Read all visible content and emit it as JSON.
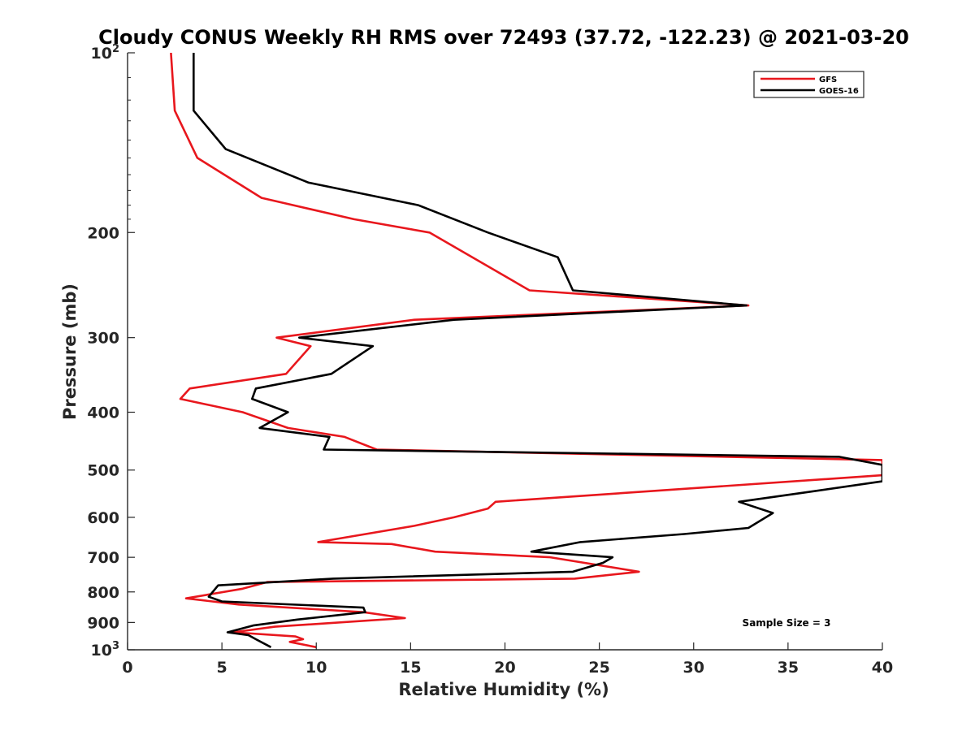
{
  "chart_data": {
    "type": "line",
    "title": "Cloudy CONUS Weekly RH RMS over 72493 (37.72, -122.23) @ 2021-03-20",
    "xlabel": "Relative Humidity (%)",
    "ylabel": "Pressure (mb)",
    "xlim": [
      0,
      40
    ],
    "ylim": [
      100,
      1000
    ],
    "y_scale": "log",
    "y_reversed": true,
    "x_ticks": [
      "0",
      "5",
      "10",
      "15",
      "20",
      "25",
      "30",
      "35",
      "40"
    ],
    "y_ticks": [
      {
        "value": 100,
        "base": "10",
        "exp": "2"
      },
      {
        "value": 200,
        "label": "200"
      },
      {
        "value": 300,
        "label": "300"
      },
      {
        "value": 400,
        "label": "400"
      },
      {
        "value": 500,
        "label": "500"
      },
      {
        "value": 600,
        "label": "600"
      },
      {
        "value": 700,
        "label": "700"
      },
      {
        "value": 800,
        "label": "800"
      },
      {
        "value": 900,
        "label": "900"
      },
      {
        "value": 1000,
        "base": "10",
        "exp": "3"
      }
    ],
    "grid": false,
    "legend_position": "top-right",
    "annotation": "Sample Size = 3",
    "series": [
      {
        "name": "GFS",
        "color": "#e8171d",
        "points": [
          [
            2.3,
            100
          ],
          [
            2.5,
            125
          ],
          [
            3.7,
            150
          ],
          [
            7.1,
            175
          ],
          [
            12.0,
            190
          ],
          [
            16.0,
            200
          ],
          [
            21.3,
            250
          ],
          [
            32.9,
            265
          ],
          [
            15.2,
            280
          ],
          [
            7.9,
            300
          ],
          [
            9.7,
            310
          ],
          [
            8.4,
            345
          ],
          [
            3.3,
            365
          ],
          [
            2.8,
            380
          ],
          [
            6.1,
            400
          ],
          [
            8.5,
            425
          ],
          [
            11.5,
            440
          ],
          [
            13.2,
            462
          ],
          [
            40.0,
            481
          ],
          [
            40.0,
            510
          ],
          [
            19.5,
            565
          ],
          [
            19.1,
            580
          ],
          [
            17.3,
            600
          ],
          [
            15.2,
            620
          ],
          [
            10.1,
            660
          ],
          [
            14.0,
            665
          ],
          [
            16.3,
            685
          ],
          [
            22.4,
            700
          ],
          [
            27.1,
            740
          ],
          [
            23.7,
            760
          ],
          [
            7.4,
            770
          ],
          [
            6.1,
            790
          ],
          [
            3.1,
            820
          ],
          [
            5.9,
            840
          ],
          [
            12.5,
            865
          ],
          [
            14.7,
            885
          ],
          [
            7.8,
            915
          ],
          [
            5.6,
            935
          ],
          [
            8.9,
            950
          ],
          [
            9.3,
            960
          ],
          [
            8.6,
            970
          ],
          [
            10.0,
            990
          ]
        ]
      },
      {
        "name": "GOES-16",
        "color": "#000000",
        "points": [
          [
            3.5,
            100
          ],
          [
            3.5,
            125
          ],
          [
            5.2,
            145
          ],
          [
            9.6,
            165
          ],
          [
            15.4,
            180
          ],
          [
            19.1,
            200
          ],
          [
            22.8,
            220
          ],
          [
            23.6,
            250
          ],
          [
            32.8,
            265
          ],
          [
            17.3,
            280
          ],
          [
            9.1,
            300
          ],
          [
            13.0,
            310
          ],
          [
            10.8,
            345
          ],
          [
            6.8,
            365
          ],
          [
            6.6,
            380
          ],
          [
            8.5,
            400
          ],
          [
            7.0,
            425
          ],
          [
            10.7,
            440
          ],
          [
            10.4,
            462
          ],
          [
            37.7,
            475
          ],
          [
            40.0,
            490
          ],
          [
            40.0,
            522
          ],
          [
            35.9,
            545
          ],
          [
            32.4,
            565
          ],
          [
            34.2,
            590
          ],
          [
            32.9,
            625
          ],
          [
            29.5,
            640
          ],
          [
            24.0,
            660
          ],
          [
            21.4,
            685
          ],
          [
            25.7,
            700
          ],
          [
            25.2,
            715
          ],
          [
            23.6,
            740
          ],
          [
            10.9,
            760
          ],
          [
            4.8,
            780
          ],
          [
            4.3,
            815
          ],
          [
            5.0,
            830
          ],
          [
            12.5,
            850
          ],
          [
            12.6,
            865
          ],
          [
            9.0,
            890
          ],
          [
            6.7,
            910
          ],
          [
            5.3,
            935
          ],
          [
            6.4,
            945
          ],
          [
            6.8,
            960
          ],
          [
            7.6,
            990
          ]
        ]
      }
    ]
  }
}
